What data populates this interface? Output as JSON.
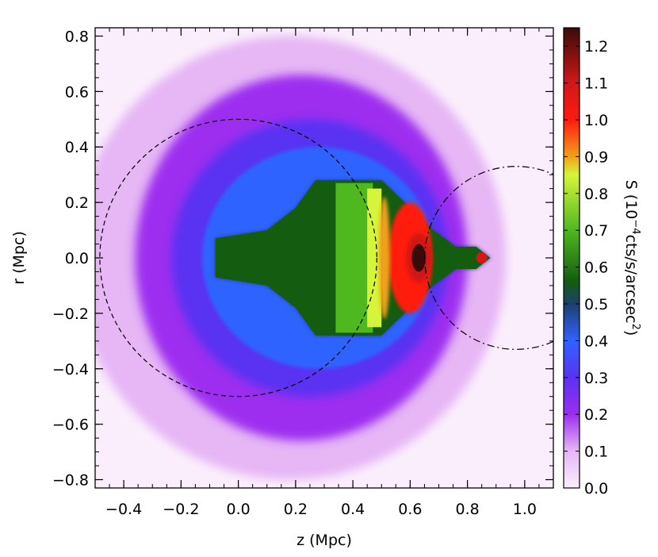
{
  "chart_data": {
    "type": "heatmap",
    "title": "",
    "xlabel": "z (Mpc)",
    "ylabel": "r (Mpc)",
    "xlim": [
      -0.5,
      1.1
    ],
    "ylim": [
      -0.83,
      0.83
    ],
    "xticks": [
      -0.4,
      -0.2,
      0.0,
      0.2,
      0.4,
      0.6,
      0.8,
      1.0
    ],
    "xtick_labels": [
      "−0.4",
      "−0.2",
      "0.0",
      "0.2",
      "0.4",
      "0.6",
      "0.8",
      "1.0"
    ],
    "yticks": [
      -0.8,
      -0.6,
      -0.4,
      -0.2,
      0.0,
      0.2,
      0.4,
      0.6,
      0.8
    ],
    "ytick_labels": [
      "−0.8",
      "−0.6",
      "−0.4",
      "−0.2",
      "0.0",
      "0.2",
      "0.4",
      "0.6",
      "0.8"
    ],
    "colorbar": {
      "label_main": "S (10",
      "label_exp1": "−4",
      "label_mid": "cts/s/arcsec",
      "label_exp2": "2",
      "label_end": ")",
      "range": [
        0.0,
        1.25
      ],
      "ticks": [
        0.0,
        0.1,
        0.2,
        0.3,
        0.4,
        0.5,
        0.6,
        0.7,
        0.8,
        0.9,
        1.0,
        1.1,
        1.2
      ],
      "tick_labels": [
        "0.0",
        "0.1",
        "0.2",
        "0.3",
        "0.4",
        "0.5",
        "0.6",
        "0.7",
        "0.8",
        "0.9",
        "1.0",
        "1.1",
        "1.2"
      ],
      "colors": [
        {
          "v": 0.0,
          "c": "#fbeefc"
        },
        {
          "v": 0.1,
          "c": "#e6b6f5"
        },
        {
          "v": 0.2,
          "c": "#9d2ef0"
        },
        {
          "v": 0.3,
          "c": "#5a32f2"
        },
        {
          "v": 0.4,
          "c": "#2f63ff"
        },
        {
          "v": 0.5,
          "c": "#1d3f6e"
        },
        {
          "v": 0.56,
          "c": "#135c10"
        },
        {
          "v": 0.7,
          "c": "#4fb81f"
        },
        {
          "v": 0.85,
          "c": "#d6f53a"
        },
        {
          "v": 0.9,
          "c": "#f2a01a"
        },
        {
          "v": 1.0,
          "c": "#ff1a10"
        },
        {
          "v": 1.1,
          "c": "#d21818"
        },
        {
          "v": 1.25,
          "c": "#3a0a0a"
        }
      ]
    },
    "overlays": [
      {
        "shape": "circle",
        "style": "dashed",
        "center_z": 0.0,
        "center_r": 0.0,
        "radius": 0.5
      },
      {
        "shape": "circle",
        "style": "dash-dot",
        "center_z": 0.97,
        "center_r": 0.0,
        "radius": 0.33
      }
    ],
    "structure": {
      "peak_value": 1.25,
      "peak_location": {
        "z": 0.63,
        "r": 0.0
      },
      "secondary_peak_value": 1.1,
      "secondary_peak_location": {
        "z": 0.85,
        "r": 0.0
      },
      "green_body_value": 0.7,
      "green_body_z_range": [
        0.27,
        0.5
      ],
      "green_body_r_extent": 0.28,
      "core_value": 0.55,
      "core_z": -0.02
    }
  }
}
